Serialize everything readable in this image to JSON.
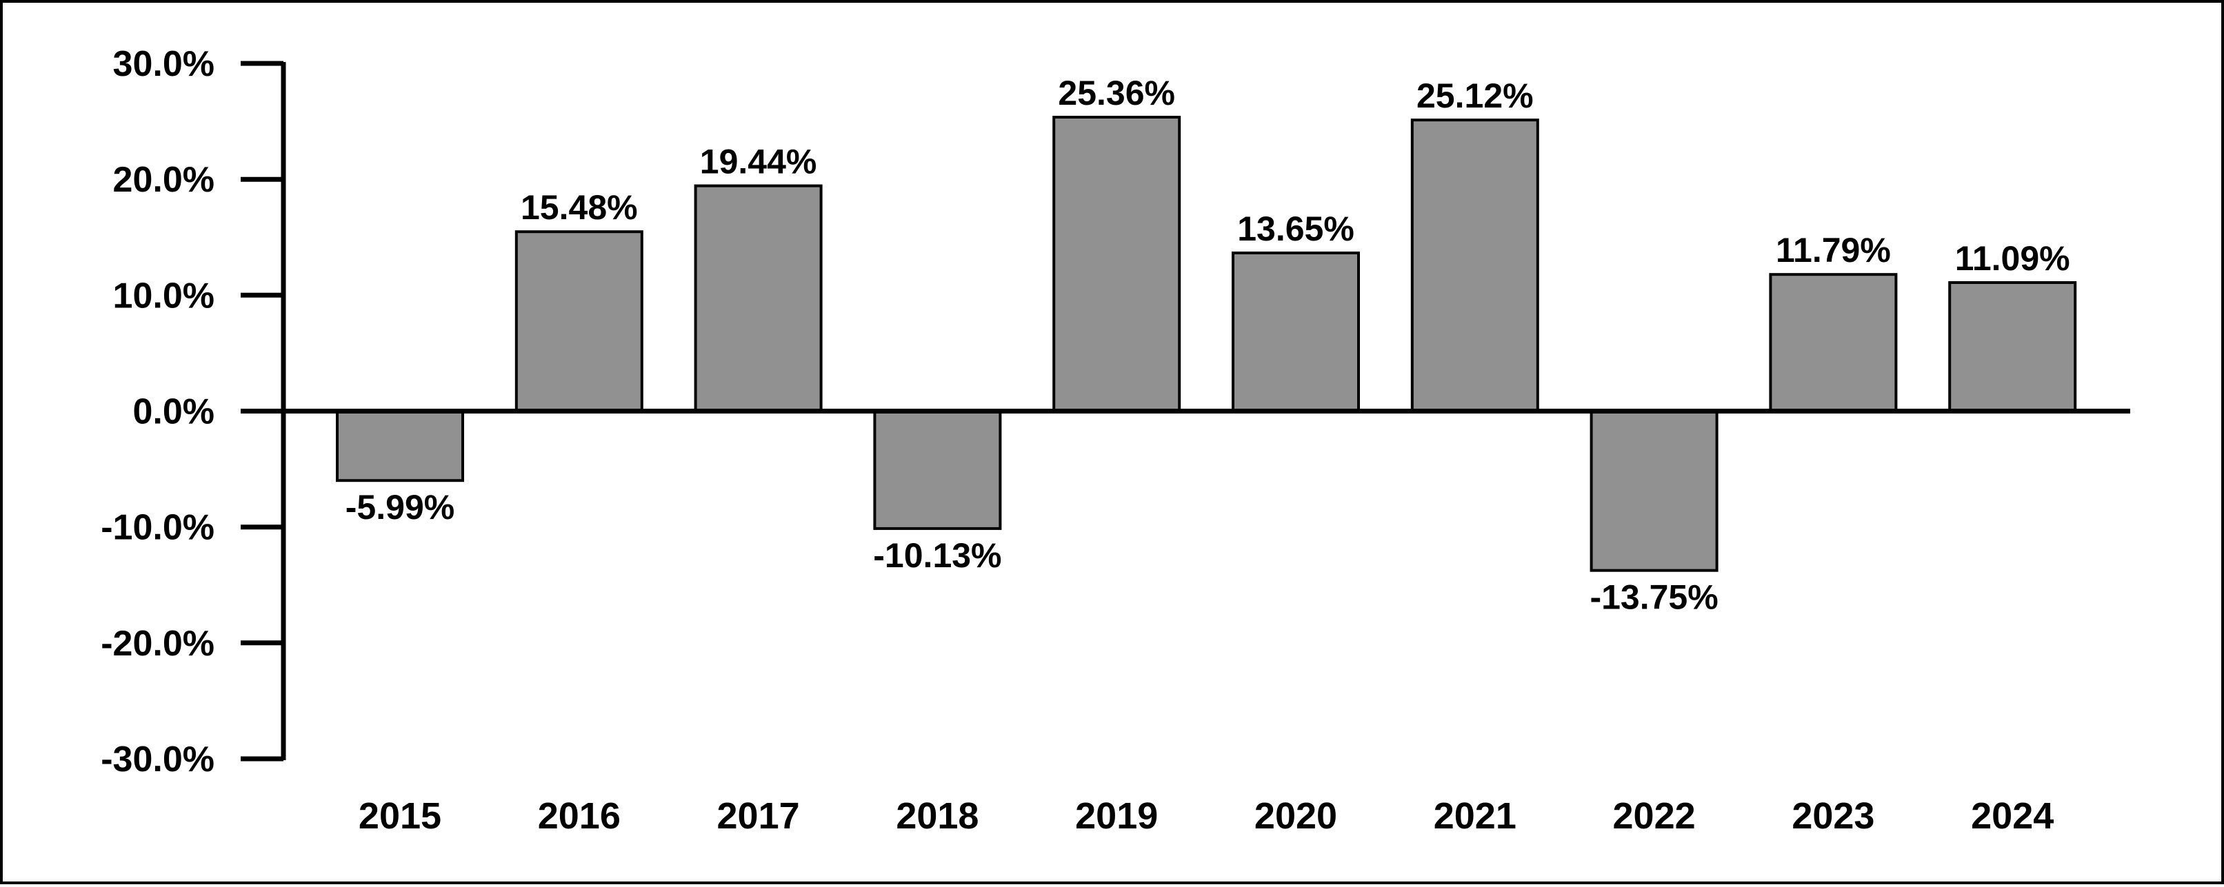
{
  "chart_data": {
    "type": "bar",
    "categories": [
      "2015",
      "2016",
      "2017",
      "2018",
      "2019",
      "2020",
      "2021",
      "2022",
      "2023",
      "2024"
    ],
    "values": [
      -5.99,
      15.48,
      19.44,
      -10.13,
      25.36,
      13.65,
      25.12,
      -13.75,
      11.79,
      11.09
    ],
    "value_labels": [
      "-5.99%",
      "15.48%",
      "19.44%",
      "-10.13%",
      "25.36%",
      "13.65%",
      "25.12%",
      "-13.75%",
      "11.79%",
      "11.09%"
    ],
    "y_ticks": [
      30,
      20,
      10,
      0,
      -10,
      -20,
      -30
    ],
    "y_tick_labels": [
      "30.0%",
      "20.0%",
      "10.0%",
      "0.0%",
      "-10.0%",
      "-20.0%",
      "-30.0%"
    ],
    "ylim": [
      -30,
      30
    ],
    "title": "",
    "xlabel": "",
    "ylabel": "",
    "grid": false,
    "legend": "none",
    "bar_color": "#919191",
    "bar_edge_color": "#000000",
    "axis_color": "#000000"
  }
}
